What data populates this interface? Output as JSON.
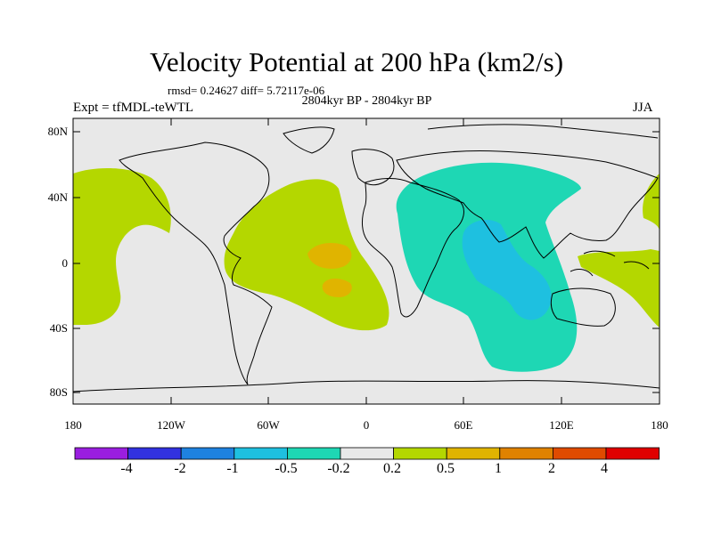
{
  "title": "Velocity Potential at 200 hPa (km2/s)",
  "stats": "rmsd= 0.24627 diff= 5.72117e-06",
  "period": "2804kyr BP - 2804kyr BP",
  "experiment": "Expt = tfMDL-teWTL",
  "season": "JJA",
  "lat_ticks": [
    "80N",
    "40N",
    "0",
    "40S",
    "80S"
  ],
  "lon_ticks": [
    "180",
    "120W",
    "60W",
    "0",
    "60E",
    "120E",
    "180"
  ],
  "colorbar": {
    "labels": [
      "-4",
      "-2",
      "-1",
      "-0.5",
      "-0.2",
      "0.2",
      "0.5",
      "1",
      "2",
      "4"
    ],
    "colors": [
      "#9a1ee0",
      "#3232e0",
      "#1e82e0",
      "#1ec0e0",
      "#1ed7b4",
      "#e8e8e8",
      "#b4d700",
      "#e0b400",
      "#e08200",
      "#e04b00",
      "#e00000"
    ]
  },
  "palette": {
    "background": "#e8e8e8",
    "coast": "#000000"
  }
}
